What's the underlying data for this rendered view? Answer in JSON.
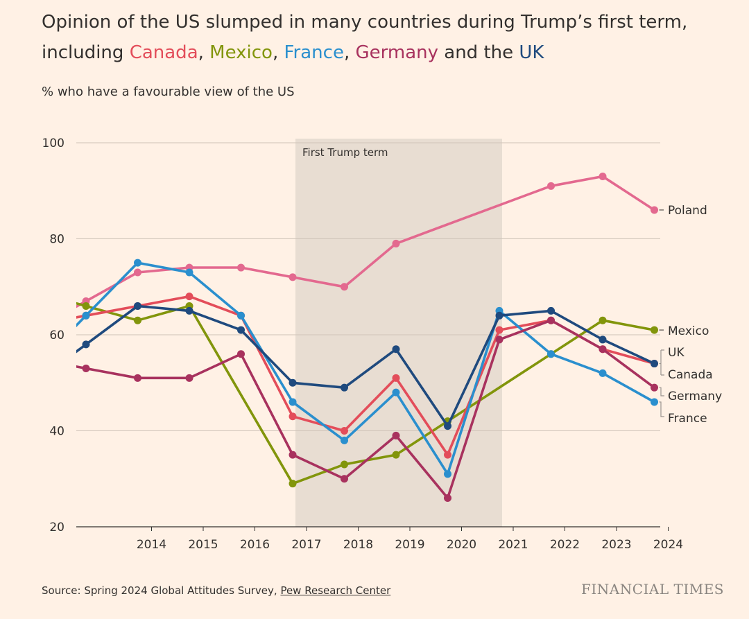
{
  "title": {
    "line1": "Opinion of the US slumped in many countries during Trump’s first term,",
    "prefix": "including ",
    "sep1": ", ",
    "sep2": ", ",
    "sep3": ", ",
    "and": " and the ",
    "canada": "Canada",
    "mexico": "Mexico",
    "france": "France",
    "germany": "Germany",
    "uk": "UK"
  },
  "subtitle": "% who have a favourable view of the US",
  "band_label": "First Trump term",
  "source_prefix": "Source: Spring 2024 Global Attitudes Survey, ",
  "source_link": "Pew Research Center",
  "brand": "FINANCIAL TIMES",
  "colors": {
    "Poland": "#e3698f",
    "Canada": "#e34d5a",
    "Mexico": "#82950b",
    "France": "#2a8fce",
    "Germany": "#a8325e",
    "UK": "#1f4a7e",
    "band": "#e8ddd2",
    "grid": "#cfc3b8",
    "axis": "#33302e"
  },
  "chart_data": {
    "type": "line",
    "ylim": [
      20,
      100
    ],
    "yticks": [
      20,
      40,
      60,
      80,
      100
    ],
    "xlim": [
      2013,
      2024.4
    ],
    "xticks": [
      2014,
      2015,
      2016,
      2017,
      2018,
      2019,
      2020,
      2021,
      2022,
      2023,
      2024
    ],
    "shaded_region": {
      "from": 2017,
      "to": 2021,
      "label": "First Trump term"
    },
    "grid": true,
    "series": [
      {
        "name": "Poland",
        "x": [
          2013,
          2014,
          2015,
          2016,
          2017,
          2018,
          2019,
          2022,
          2023,
          2024
        ],
        "values": [
          67,
          73,
          74,
          74,
          72,
          70,
          79,
          91,
          93,
          86
        ]
      },
      {
        "name": "Canada",
        "x": [
          2013,
          2014,
          2015,
          2016,
          2017,
          2018,
          2019,
          2020,
          2021,
          2022,
          2023,
          2024
        ],
        "values": [
          64,
          66,
          68,
          64,
          43,
          40,
          51,
          35,
          61,
          63,
          57,
          54
        ]
      },
      {
        "name": "Mexico",
        "x": [
          2013,
          2014,
          2015,
          2017,
          2018,
          2019,
          2020,
          2022,
          2023,
          2024
        ],
        "values": [
          66,
          63,
          66,
          29,
          33,
          35,
          42,
          56,
          63,
          61
        ]
      },
      {
        "name": "France",
        "x": [
          2013,
          2014,
          2015,
          2016,
          2017,
          2018,
          2019,
          2020,
          2021,
          2022,
          2023,
          2024
        ],
        "values": [
          64,
          75,
          73,
          64,
          46,
          38,
          48,
          31,
          65,
          56,
          52,
          46
        ]
      },
      {
        "name": "Germany",
        "x": [
          2013,
          2014,
          2015,
          2016,
          2017,
          2018,
          2019,
          2020,
          2021,
          2022,
          2023,
          2024
        ],
        "values": [
          53,
          51,
          51,
          56,
          35,
          30,
          39,
          26,
          59,
          63,
          57,
          49
        ]
      },
      {
        "name": "UK",
        "x": [
          2013,
          2014,
          2015,
          2016,
          2017,
          2018,
          2019,
          2020,
          2021,
          2022,
          2023,
          2024
        ],
        "values": [
          58,
          66,
          65,
          61,
          50,
          49,
          57,
          41,
          64,
          65,
          59,
          54
        ]
      }
    ],
    "end_labels": [
      "Poland",
      "Mexico",
      "UK",
      "Canada",
      "Germany",
      "France"
    ]
  }
}
